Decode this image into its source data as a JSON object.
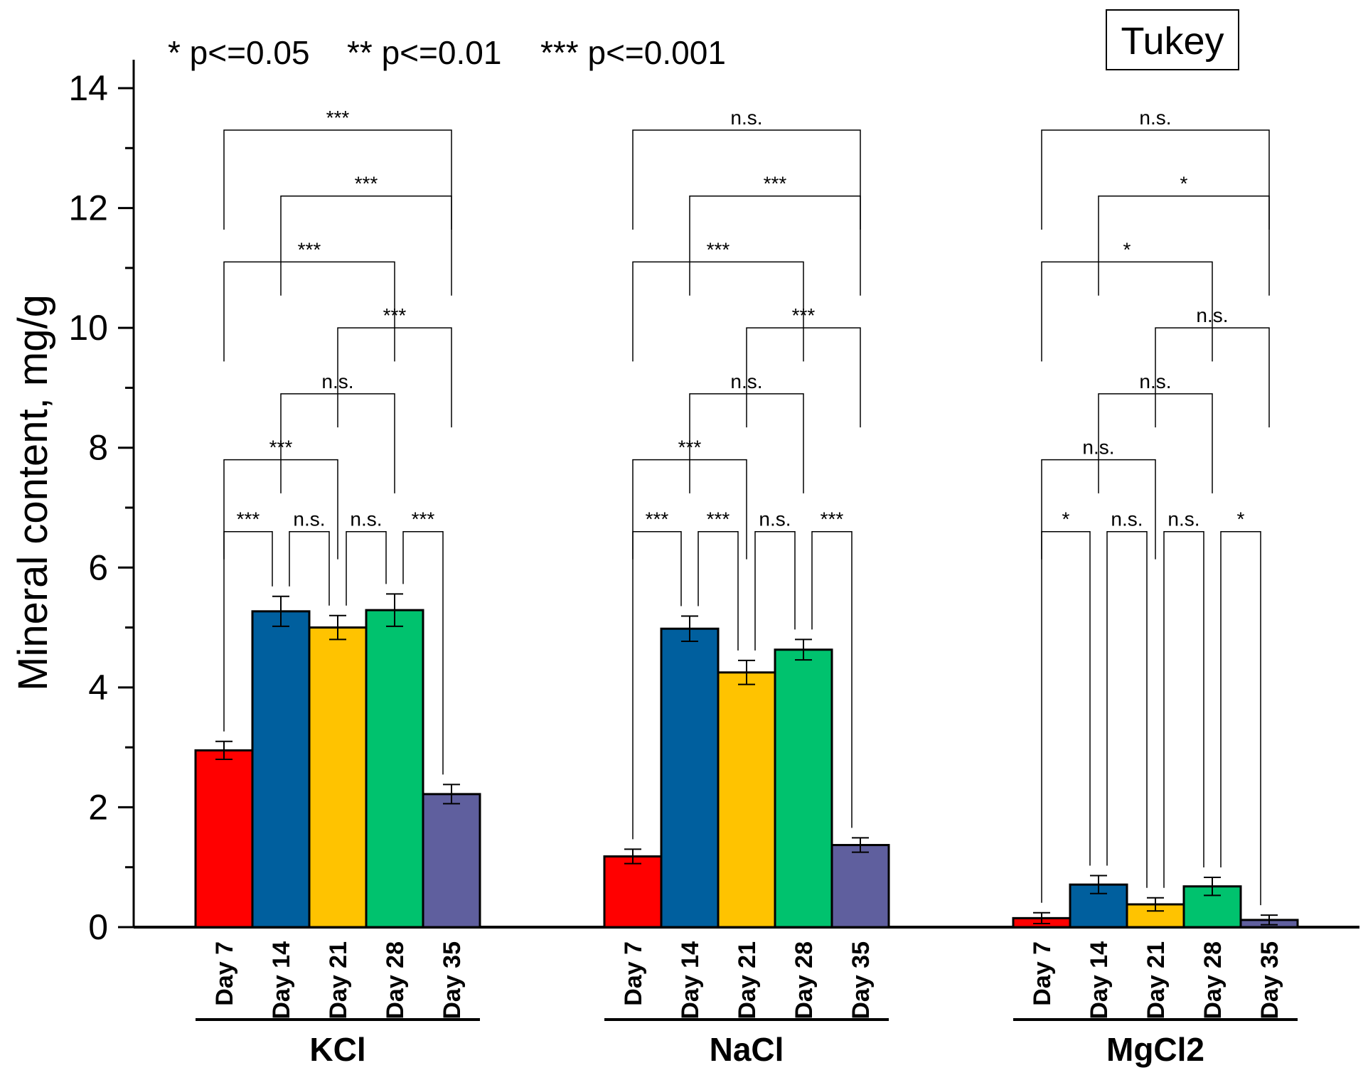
{
  "chart_data": {
    "type": "bar",
    "title": "",
    "xlabel": "",
    "ylabel": "Mineral content, mg/g",
    "ylim": [
      0,
      14
    ],
    "yticks": [
      0,
      2,
      4,
      6,
      8,
      10,
      12,
      14
    ],
    "grid": false,
    "method_label": "Tukey",
    "significance_legend": [
      "* p<=0.05",
      "** p<=0.01",
      "*** p<=0.001"
    ],
    "categories": [
      "Day 7",
      "Day 14",
      "Day 21",
      "Day 28",
      "Day 35"
    ],
    "series_colors": [
      "#ff0000",
      "#005f9e",
      "#ffc300",
      "#00c26e",
      "#5f5f9e"
    ],
    "groups": [
      {
        "name": "KCl",
        "values": [
          2.95,
          5.27,
          5.0,
          5.29,
          2.22
        ],
        "errors": [
          0.15,
          0.25,
          0.2,
          0.27,
          0.16
        ],
        "comparisons": [
          {
            "from": 0,
            "to": 1,
            "label": "***",
            "level": 6.6
          },
          {
            "from": 1,
            "to": 2,
            "label": "n.s.",
            "level": 6.6
          },
          {
            "from": 2,
            "to": 3,
            "label": "n.s.",
            "level": 6.6
          },
          {
            "from": 3,
            "to": 4,
            "label": "***",
            "level": 6.6
          },
          {
            "from": 0,
            "to": 2,
            "label": "***",
            "level": 7.8
          },
          {
            "from": 1,
            "to": 3,
            "label": "n.s.",
            "level": 8.9
          },
          {
            "from": 2,
            "to": 4,
            "label": "***",
            "level": 10.0
          },
          {
            "from": 0,
            "to": 3,
            "label": "***",
            "level": 11.1
          },
          {
            "from": 1,
            "to": 4,
            "label": "***",
            "level": 12.2
          },
          {
            "from": 0,
            "to": 4,
            "label": "***",
            "level": 13.3
          }
        ]
      },
      {
        "name": "NaCl",
        "values": [
          1.18,
          4.98,
          4.25,
          4.63,
          1.37
        ],
        "errors": [
          0.12,
          0.21,
          0.2,
          0.17,
          0.12
        ],
        "comparisons": [
          {
            "from": 0,
            "to": 1,
            "label": "***",
            "level": 6.6
          },
          {
            "from": 1,
            "to": 2,
            "label": "***",
            "level": 6.6
          },
          {
            "from": 2,
            "to": 3,
            "label": "n.s.",
            "level": 6.6
          },
          {
            "from": 3,
            "to": 4,
            "label": "***",
            "level": 6.6
          },
          {
            "from": 0,
            "to": 2,
            "label": "***",
            "level": 7.8
          },
          {
            "from": 1,
            "to": 3,
            "label": "n.s.",
            "level": 8.9
          },
          {
            "from": 2,
            "to": 4,
            "label": "***",
            "level": 10.0
          },
          {
            "from": 0,
            "to": 3,
            "label": "***",
            "level": 11.1
          },
          {
            "from": 1,
            "to": 4,
            "label": "***",
            "level": 12.2
          },
          {
            "from": 0,
            "to": 4,
            "label": "n.s.",
            "level": 13.3
          }
        ]
      },
      {
        "name": "MgCl2",
        "values": [
          0.15,
          0.71,
          0.38,
          0.68,
          0.12
        ],
        "errors": [
          0.09,
          0.15,
          0.11,
          0.15,
          0.08
        ],
        "comparisons": [
          {
            "from": 0,
            "to": 1,
            "label": "*",
            "level": 6.6
          },
          {
            "from": 1,
            "to": 2,
            "label": "n.s.",
            "level": 6.6
          },
          {
            "from": 2,
            "to": 3,
            "label": "n.s.",
            "level": 6.6
          },
          {
            "from": 3,
            "to": 4,
            "label": "*",
            "level": 6.6
          },
          {
            "from": 0,
            "to": 2,
            "label": "n.s.",
            "level": 7.8
          },
          {
            "from": 1,
            "to": 3,
            "label": "n.s.",
            "level": 8.9
          },
          {
            "from": 2,
            "to": 4,
            "label": "n.s.",
            "level": 10.0
          },
          {
            "from": 0,
            "to": 3,
            "label": "*",
            "level": 11.1
          },
          {
            "from": 1,
            "to": 4,
            "label": "*",
            "level": 12.2
          },
          {
            "from": 0,
            "to": 4,
            "label": "n.s.",
            "level": 13.3
          }
        ]
      }
    ]
  }
}
